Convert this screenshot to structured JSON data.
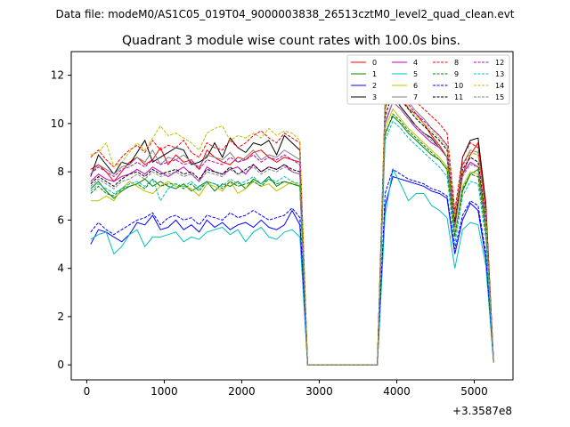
{
  "header": {
    "data_file": "Data file: modeM0/AS1C05_019T04_9000003838_26513cztM0_level2_quad_clean.evt"
  },
  "chart_data": {
    "type": "line",
    "title": "Quadrant 3 module wise count rates with 100.0s bins.",
    "xlabel": "",
    "ylabel": "",
    "x_offset_label": "+3.3587e8",
    "xlim": [
      -200,
      5500
    ],
    "ylim": [
      -0.62,
      12.98
    ],
    "xticks": [
      0,
      1000,
      2000,
      3000,
      4000,
      5000
    ],
    "xtick_labels": [
      "0",
      "1000",
      "2000",
      "3000",
      "4000",
      "5000"
    ],
    "yticks": [
      0,
      2,
      4,
      6,
      8,
      10,
      12
    ],
    "ytick_labels": [
      "0",
      "2",
      "4",
      "6",
      "8",
      "10",
      "12"
    ],
    "legend_position": "top-right",
    "x": [
      50,
      150,
      250,
      350,
      450,
      550,
      650,
      750,
      850,
      950,
      1050,
      1150,
      1250,
      1350,
      1450,
      1550,
      1650,
      1750,
      1850,
      1950,
      2050,
      2150,
      2250,
      2350,
      2450,
      2550,
      2650,
      2750,
      2850,
      2950,
      3050,
      3150,
      3250,
      3350,
      3450,
      3550,
      3650,
      3750,
      3850,
      3950,
      4050,
      4150,
      4250,
      4350,
      4450,
      4550,
      4650,
      4750,
      4850,
      4950,
      5050,
      5150,
      5250
    ],
    "series": [
      {
        "name": "0",
        "color": "#ff0000",
        "dash": "solid",
        "values": [
          8.1,
          8.3,
          8.0,
          7.6,
          8.0,
          8.4,
          8.6,
          8.3,
          8.5,
          9.0,
          8.3,
          8.7,
          8.4,
          8.5,
          8.1,
          8.9,
          8.6,
          8.4,
          8.3,
          8.6,
          8.5,
          8.8,
          8.9,
          8.6,
          8.4,
          8.6,
          8.5,
          8.4,
          0.0,
          0.0,
          0.0,
          0.0,
          0.0,
          0.0,
          0.0,
          0.0,
          0.0,
          0.0,
          10.6,
          11.8,
          11.2,
          10.6,
          10.4,
          10.0,
          9.5,
          9.1,
          8.6,
          6.0,
          7.9,
          8.7,
          9.2,
          6.5,
          0.1
        ]
      },
      {
        "name": "1",
        "color": "#008000",
        "dash": "solid",
        "values": [
          7.3,
          7.6,
          7.2,
          6.9,
          7.2,
          7.4,
          7.5,
          7.7,
          7.4,
          7.6,
          7.4,
          7.3,
          7.5,
          7.2,
          7.4,
          7.6,
          7.2,
          7.5,
          7.4,
          7.6,
          7.3,
          7.7,
          7.5,
          7.8,
          7.4,
          7.6,
          7.5,
          7.4,
          0.0,
          0.0,
          0.0,
          0.0,
          0.0,
          0.0,
          0.0,
          0.0,
          0.0,
          0.0,
          9.6,
          10.3,
          10.0,
          9.6,
          9.3,
          9.0,
          8.7,
          8.5,
          8.1,
          5.4,
          7.2,
          7.9,
          8.1,
          5.8,
          0.1
        ]
      },
      {
        "name": "2",
        "color": "#0000ff",
        "dash": "solid",
        "values": [
          5.0,
          5.6,
          5.5,
          5.3,
          5.1,
          5.4,
          5.9,
          5.8,
          6.2,
          5.6,
          5.7,
          6.0,
          5.6,
          5.8,
          5.5,
          6.0,
          5.7,
          5.9,
          5.6,
          5.8,
          5.9,
          5.7,
          6.0,
          5.7,
          5.6,
          5.8,
          6.4,
          5.8,
          0.0,
          0.0,
          0.0,
          0.0,
          0.0,
          0.0,
          0.0,
          0.0,
          0.0,
          0.0,
          6.6,
          7.8,
          7.7,
          7.6,
          7.5,
          7.4,
          7.2,
          7.1,
          6.9,
          4.6,
          6.0,
          6.7,
          6.4,
          4.4,
          0.1
        ]
      },
      {
        "name": "3",
        "color": "#000000",
        "dash": "solid",
        "values": [
          7.8,
          8.7,
          8.3,
          7.9,
          8.4,
          8.3,
          8.8,
          9.3,
          8.4,
          8.6,
          8.8,
          9.0,
          8.9,
          8.3,
          8.4,
          8.6,
          9.2,
          8.6,
          9.4,
          9.0,
          8.8,
          9.2,
          9.1,
          9.3,
          8.7,
          9.5,
          9.2,
          8.9,
          0.0,
          0.0,
          0.0,
          0.0,
          0.0,
          0.0,
          0.0,
          0.0,
          0.0,
          0.0,
          10.7,
          11.2,
          10.7,
          10.3,
          9.9,
          9.6,
          9.4,
          9.0,
          8.6,
          5.7,
          8.6,
          9.3,
          9.4,
          6.7,
          0.1
        ]
      },
      {
        "name": "4",
        "color": "#bf00bf",
        "dash": "solid",
        "values": [
          7.6,
          7.9,
          7.7,
          7.6,
          7.8,
          7.9,
          8.1,
          7.9,
          8.2,
          8.0,
          7.8,
          8.0,
          8.2,
          7.9,
          7.6,
          8.2,
          8.0,
          7.9,
          8.1,
          8.2,
          7.9,
          8.3,
          8.0,
          8.2,
          8.1,
          8.3,
          8.0,
          7.9,
          0.0,
          0.0,
          0.0,
          0.0,
          0.0,
          0.0,
          0.0,
          0.0,
          0.0,
          0.0,
          10.0,
          10.9,
          10.6,
          10.2,
          9.8,
          9.5,
          9.2,
          9.0,
          8.6,
          5.7,
          7.9,
          8.4,
          8.2,
          5.9,
          0.1
        ]
      },
      {
        "name": "5",
        "color": "#00bfbf",
        "dash": "solid",
        "values": [
          5.2,
          5.4,
          5.5,
          4.6,
          4.9,
          5.4,
          5.6,
          4.9,
          5.3,
          5.3,
          5.4,
          5.5,
          5.1,
          5.3,
          5.2,
          5.5,
          5.6,
          5.7,
          5.4,
          5.6,
          5.1,
          5.5,
          5.7,
          5.3,
          5.2,
          5.5,
          5.6,
          5.3,
          0.0,
          0.0,
          0.0,
          0.0,
          0.0,
          0.0,
          0.0,
          0.0,
          0.0,
          0.0,
          6.2,
          8.1,
          7.5,
          6.8,
          7.1,
          7.1,
          6.6,
          6.4,
          6.1,
          4.0,
          5.6,
          5.9,
          5.8,
          4.1,
          0.1
        ]
      },
      {
        "name": "6",
        "color": "#bfbf00",
        "dash": "solid",
        "values": [
          6.8,
          6.8,
          7.0,
          6.8,
          7.3,
          7.6,
          7.4,
          7.2,
          7.1,
          7.4,
          7.6,
          7.4,
          7.4,
          7.3,
          7.0,
          7.5,
          7.4,
          7.2,
          7.6,
          7.1,
          7.3,
          7.6,
          7.4,
          7.5,
          7.2,
          7.4,
          7.6,
          7.4,
          0.0,
          0.0,
          0.0,
          0.0,
          0.0,
          0.0,
          0.0,
          0.0,
          0.0,
          0.0,
          9.8,
          10.6,
          10.2,
          9.8,
          9.5,
          9.2,
          8.9,
          8.6,
          8.2,
          5.3,
          7.4,
          8.0,
          7.9,
          5.5,
          0.1
        ]
      },
      {
        "name": "7",
        "color": "#808080",
        "dash": "solid",
        "values": [
          7.9,
          8.3,
          8.1,
          7.9,
          8.2,
          8.3,
          8.6,
          8.4,
          8.9,
          8.3,
          8.6,
          8.5,
          8.7,
          8.4,
          8.2,
          8.7,
          8.6,
          8.5,
          8.8,
          8.4,
          8.6,
          8.9,
          8.5,
          8.7,
          8.6,
          8.9,
          8.7,
          8.5,
          0.0,
          0.0,
          0.0,
          0.0,
          0.0,
          0.0,
          0.0,
          0.0,
          0.0,
          0.0,
          10.9,
          11.7,
          11.3,
          10.9,
          10.5,
          10.2,
          9.8,
          9.5,
          9.1,
          6.2,
          8.3,
          8.9,
          8.8,
          6.3,
          0.1
        ]
      },
      {
        "name": "8",
        "color": "#ff0000",
        "dash": "dashed",
        "values": [
          8.6,
          8.9,
          8.5,
          8.2,
          8.6,
          8.9,
          9.1,
          8.8,
          9.3,
          8.9,
          9.1,
          9.0,
          9.3,
          8.8,
          8.6,
          9.2,
          9.0,
          8.9,
          9.3,
          9.0,
          9.2,
          9.5,
          9.7,
          9.4,
          9.2,
          9.6,
          9.4,
          9.2,
          0.0,
          0.0,
          0.0,
          0.0,
          0.0,
          0.0,
          0.0,
          0.0,
          0.0,
          0.0,
          11.0,
          11.9,
          11.5,
          11.2,
          10.9,
          10.6,
          10.3,
          10.0,
          9.6,
          6.4,
          8.6,
          9.2,
          9.0,
          6.6,
          0.1
        ]
      },
      {
        "name": "9",
        "color": "#008000",
        "dash": "dashed",
        "values": [
          7.1,
          7.4,
          7.1,
          7.0,
          7.3,
          7.4,
          7.5,
          7.3,
          7.7,
          7.4,
          7.5,
          7.5,
          7.3,
          7.5,
          7.2,
          7.6,
          7.5,
          7.3,
          7.6,
          7.4,
          7.5,
          7.6,
          7.4,
          7.7,
          7.5,
          7.6,
          7.5,
          7.4,
          0.0,
          0.0,
          0.0,
          0.0,
          0.0,
          0.0,
          0.0,
          0.0,
          0.0,
          0.0,
          9.5,
          10.4,
          10.1,
          9.7,
          9.4,
          9.1,
          8.8,
          8.5,
          8.1,
          5.3,
          7.3,
          7.9,
          7.8,
          5.5,
          0.1
        ]
      },
      {
        "name": "10",
        "color": "#0000ff",
        "dash": "dashed",
        "values": [
          5.5,
          5.9,
          5.6,
          5.4,
          5.6,
          5.8,
          6.0,
          6.1,
          6.3,
          5.8,
          6.1,
          6.2,
          6.0,
          6.1,
          5.8,
          6.2,
          6.1,
          6.0,
          6.3,
          6.1,
          6.2,
          6.4,
          6.2,
          6.0,
          6.1,
          6.2,
          6.5,
          6.1,
          0.0,
          0.0,
          0.0,
          0.0,
          0.0,
          0.0,
          0.0,
          0.0,
          0.0,
          0.0,
          7.1,
          8.1,
          7.9,
          7.7,
          7.6,
          7.5,
          7.3,
          7.2,
          7.0,
          4.8,
          6.2,
          6.8,
          6.6,
          4.6,
          0.1
        ]
      },
      {
        "name": "11",
        "color": "#000000",
        "dash": "dashed",
        "values": [
          7.5,
          7.8,
          7.6,
          7.4,
          7.7,
          7.9,
          8.0,
          7.8,
          8.1,
          7.9,
          8.0,
          8.1,
          7.9,
          8.0,
          7.7,
          8.1,
          8.0,
          7.9,
          8.2,
          7.9,
          8.1,
          8.3,
          8.0,
          8.2,
          8.1,
          8.3,
          8.1,
          8.0,
          0.0,
          0.0,
          0.0,
          0.0,
          0.0,
          0.0,
          0.0,
          0.0,
          0.0,
          0.0,
          10.3,
          11.3,
          11.0,
          10.6,
          10.2,
          9.9,
          9.6,
          9.3,
          8.9,
          5.9,
          8.1,
          8.6,
          8.4,
          6.1,
          0.1
        ]
      },
      {
        "name": "12",
        "color": "#bf00bf",
        "dash": "dashed",
        "values": [
          7.9,
          8.2,
          8.0,
          7.8,
          8.1,
          8.2,
          8.4,
          8.2,
          8.5,
          8.3,
          8.4,
          8.5,
          8.3,
          8.4,
          8.1,
          8.5,
          8.4,
          8.3,
          8.6,
          8.4,
          8.5,
          8.7,
          8.4,
          8.6,
          8.5,
          8.7,
          8.5,
          8.3,
          0.0,
          0.0,
          0.0,
          0.0,
          0.0,
          0.0,
          0.0,
          0.0,
          0.0,
          0.0,
          10.7,
          11.6,
          11.2,
          10.8,
          10.4,
          10.1,
          9.8,
          9.5,
          9.1,
          6.1,
          8.3,
          8.8,
          8.7,
          6.3,
          0.1
        ]
      },
      {
        "name": "13",
        "color": "#00bfbf",
        "dash": "dashed",
        "values": [
          7.2,
          7.5,
          7.3,
          7.1,
          7.3,
          7.5,
          7.6,
          7.4,
          7.7,
          6.8,
          7.3,
          7.5,
          7.4,
          7.6,
          7.3,
          7.6,
          7.5,
          7.4,
          7.7,
          7.5,
          7.6,
          7.8,
          7.5,
          7.7,
          7.6,
          7.8,
          7.6,
          7.5,
          0.0,
          0.0,
          0.0,
          0.0,
          0.0,
          0.0,
          0.0,
          0.0,
          0.0,
          0.0,
          9.3,
          10.1,
          9.8,
          9.4,
          9.1,
          8.8,
          8.5,
          8.2,
          7.8,
          5.0,
          7.0,
          7.6,
          7.5,
          5.2,
          0.1
        ]
      },
      {
        "name": "14",
        "color": "#bfbf00",
        "dash": "dashed",
        "values": [
          8.7,
          8.8,
          9.2,
          8.2,
          8.4,
          8.8,
          9.2,
          8.9,
          9.4,
          9.9,
          9.5,
          9.6,
          9.4,
          9.2,
          8.9,
          9.6,
          9.8,
          9.9,
          9.3,
          9.5,
          9.4,
          9.6,
          9.4,
          9.8,
          9.5,
          9.7,
          9.6,
          9.3,
          0.0,
          0.0,
          0.0,
          0.0,
          0.0,
          0.0,
          0.0,
          0.0,
          0.0,
          0.0,
          10.8,
          11.6,
          11.2,
          10.7,
          10.3,
          10.0,
          9.7,
          9.4,
          9.0,
          6.1,
          8.2,
          8.8,
          8.7,
          6.2,
          0.1
        ]
      },
      {
        "name": "15",
        "color": "#808080",
        "dash": "dashed",
        "values": [
          7.4,
          7.7,
          7.5,
          7.3,
          7.6,
          7.7,
          7.9,
          7.7,
          8.0,
          7.8,
          7.9,
          8.0,
          7.8,
          7.9,
          7.6,
          8.0,
          7.9,
          7.8,
          8.1,
          7.9,
          8.0,
          8.2,
          7.9,
          8.1,
          8.0,
          8.2,
          8.0,
          7.9,
          0.0,
          0.0,
          0.0,
          0.0,
          0.0,
          0.0,
          0.0,
          0.0,
          0.0,
          0.0,
          10.1,
          10.9,
          10.6,
          10.2,
          9.9,
          9.6,
          9.3,
          9.0,
          8.6,
          5.7,
          7.8,
          8.3,
          8.2,
          5.8,
          0.1
        ]
      }
    ]
  }
}
